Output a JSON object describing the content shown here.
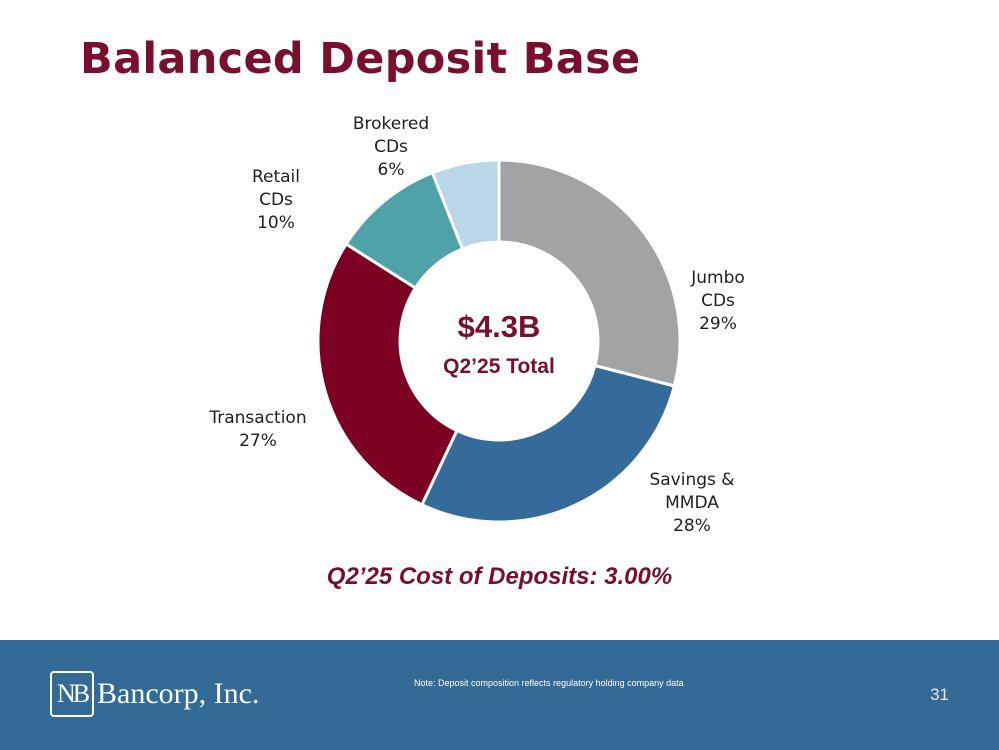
{
  "slide": {
    "title": "Balanced Deposit Base",
    "cost_of_deposits": "Q2’25 Cost of Deposits: 3.00%",
    "page_number": "31"
  },
  "footer": {
    "logo_mark": "NB",
    "logo_text": "Bancorp, Inc.",
    "note": "Note: Deposit composition reflects regulatory holding company data"
  },
  "chart_data": {
    "type": "pie",
    "variant": "donut",
    "title": "Balanced Deposit Base",
    "center_value": "$4.3B",
    "center_label": "Q2’25 Total",
    "slices": [
      {
        "name": "Jumbo CDs",
        "label_lines": [
          "Jumbo",
          "CDs",
          "29%"
        ],
        "value": 29,
        "color": "#a1a3a5"
      },
      {
        "name": "Savings & MMDA",
        "label_lines": [
          "Savings &",
          "MMDA",
          "28%"
        ],
        "value": 28,
        "color": "#346b9a"
      },
      {
        "name": "Transaction",
        "label_lines": [
          "Transaction",
          "27%"
        ],
        "value": 27,
        "color": "#7b0022"
      },
      {
        "name": "Retail CDs",
        "label_lines": [
          "Retail",
          "CDs",
          "10%"
        ],
        "value": 10,
        "color": "#4fa2a8"
      },
      {
        "name": "Brokered CDs",
        "label_lines": [
          "Brokered",
          "CDs",
          "6%"
        ],
        "value": 6,
        "color": "#b9d7e7"
      }
    ]
  }
}
